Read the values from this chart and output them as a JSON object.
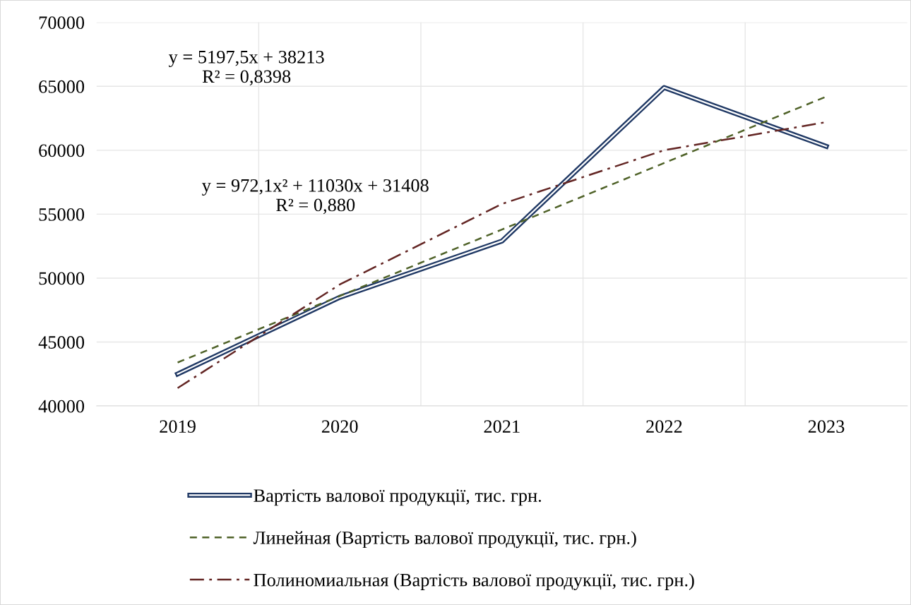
{
  "chart_data": {
    "type": "line",
    "categories": [
      "2019",
      "2020",
      "2021",
      "2022",
      "2023"
    ],
    "series": [
      {
        "name": "Вартість валової продукції, тис. грн.",
        "color": "#1f3864",
        "line_style": "solid",
        "values": [
          42500,
          48500,
          52900,
          64900,
          60300
        ]
      },
      {
        "name": "Линейная (Вартість валової продукції, тис. грн.)",
        "color": "#4f6228",
        "line_style": "dashed",
        "values": [
          43400,
          48600,
          53800,
          59000,
          64200
        ]
      },
      {
        "name": "Полиномиальная (Вартість валової продукції, тис. грн.)",
        "color": "#632523",
        "line_style": "dashdot",
        "values": [
          41400,
          49500,
          55800,
          60000,
          62200
        ]
      }
    ],
    "ylim": [
      40000,
      70000
    ],
    "yticks": [
      40000,
      45000,
      50000,
      55000,
      60000,
      65000,
      70000
    ],
    "grid": true,
    "legend": "bottom",
    "annotations": [
      "y = 5197,5x + 38213\nR² = 0,8398",
      "y = 972,1x² + 11030x + 31408\nR² = 0,880"
    ]
  }
}
